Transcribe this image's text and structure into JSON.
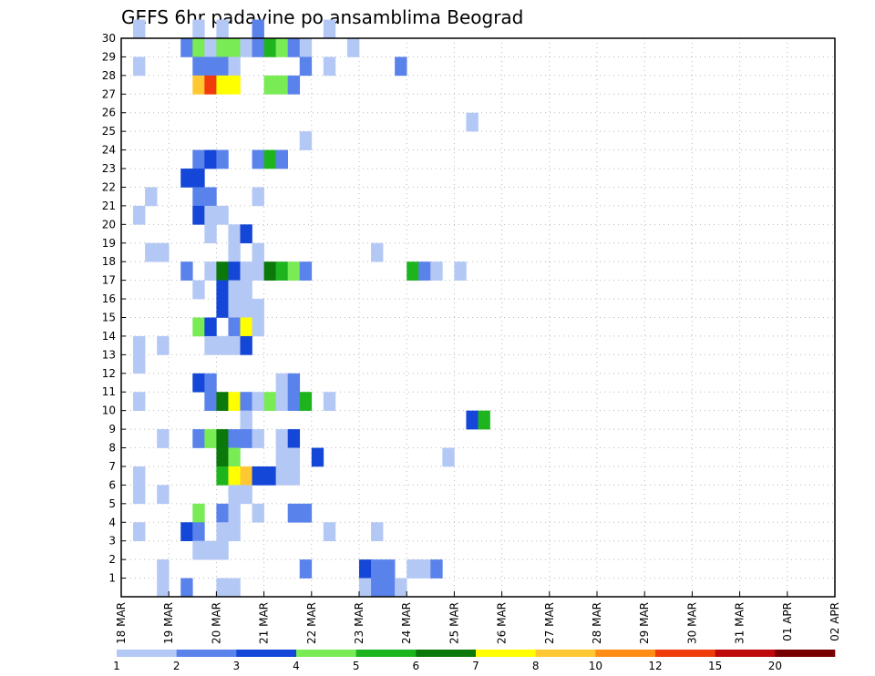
{
  "chart_data": {
    "type": "heatmap",
    "title": "GEFS 6hr padavine po ansamblima Beograd",
    "xlabel": "",
    "ylabel": "",
    "x_ticks": [
      "18 MAR",
      "19 MAR",
      "20 MAR",
      "21 MAR",
      "22 MAR",
      "23 MAR",
      "24 MAR",
      "25 MAR",
      "26 MAR",
      "27 MAR",
      "28 MAR",
      "29 MAR",
      "30 MAR",
      "31 MAR",
      "01 APR",
      "02 APR"
    ],
    "x_range": [
      "18 MAR 00Z",
      "02 APR 00Z"
    ],
    "x_step": "6hr",
    "y_ticks": [
      "1",
      "2",
      "3",
      "4",
      "5",
      "6",
      "7",
      "8",
      "9",
      "10",
      "11",
      "12",
      "13",
      "14",
      "15",
      "16",
      "17",
      "18",
      "19",
      "20",
      "21",
      "22",
      "23",
      "24",
      "25",
      "26",
      "27",
      "28",
      "29",
      "30"
    ],
    "y_range": [
      0,
      30
    ],
    "grid": true,
    "colorbar": {
      "labels": [
        "1",
        "2",
        "3",
        "4",
        "5",
        "6",
        "7",
        "8",
        "10",
        "12",
        "15",
        "20"
      ],
      "colors": [
        "#b4c8f5",
        "#5a82eb",
        "#1446d7",
        "#78eb55",
        "#1eb41e",
        "#0a780a",
        "#ffff00",
        "#ffc832",
        "#ff8c14",
        "#f03c0a",
        "#be0a0a",
        "#780000"
      ]
    },
    "cells": [
      [
        30,
        1,
        0
      ],
      [
        30,
        6,
        0
      ],
      [
        30,
        8,
        0
      ],
      [
        30,
        11,
        1
      ],
      [
        30,
        17,
        0
      ],
      [
        29,
        5,
        1
      ],
      [
        29,
        6,
        3
      ],
      [
        29,
        7,
        0
      ],
      [
        29,
        8,
        3
      ],
      [
        29,
        9,
        3
      ],
      [
        29,
        10,
        0
      ],
      [
        29,
        11,
        1
      ],
      [
        29,
        12,
        4
      ],
      [
        29,
        13,
        3
      ],
      [
        29,
        14,
        1
      ],
      [
        29,
        15,
        0
      ],
      [
        29,
        19,
        0
      ],
      [
        28,
        1,
        0
      ],
      [
        28,
        6,
        1
      ],
      [
        28,
        7,
        1
      ],
      [
        28,
        8,
        1
      ],
      [
        28,
        9,
        0
      ],
      [
        28,
        15,
        1
      ],
      [
        28,
        17,
        0
      ],
      [
        28,
        23,
        1
      ],
      [
        27,
        6,
        7
      ],
      [
        27,
        7,
        9
      ],
      [
        27,
        8,
        6
      ],
      [
        27,
        9,
        6
      ],
      [
        27,
        12,
        3
      ],
      [
        27,
        13,
        3
      ],
      [
        27,
        14,
        1
      ],
      [
        25,
        29,
        0
      ],
      [
        24,
        15,
        0
      ],
      [
        23,
        6,
        1
      ],
      [
        23,
        7,
        2
      ],
      [
        23,
        8,
        1
      ],
      [
        23,
        11,
        1
      ],
      [
        23,
        12,
        4
      ],
      [
        23,
        13,
        1
      ],
      [
        22,
        5,
        2
      ],
      [
        22,
        6,
        2
      ],
      [
        21,
        2,
        0
      ],
      [
        21,
        6,
        1
      ],
      [
        21,
        7,
        1
      ],
      [
        21,
        11,
        0
      ],
      [
        20,
        1,
        0
      ],
      [
        20,
        6,
        2
      ],
      [
        20,
        7,
        0
      ],
      [
        20,
        8,
        0
      ],
      [
        19,
        7,
        0
      ],
      [
        19,
        9,
        0
      ],
      [
        19,
        10,
        2
      ],
      [
        18,
        2,
        0
      ],
      [
        18,
        3,
        0
      ],
      [
        18,
        9,
        0
      ],
      [
        18,
        11,
        0
      ],
      [
        18,
        21,
        0
      ],
      [
        17,
        5,
        1
      ],
      [
        17,
        7,
        0
      ],
      [
        17,
        8,
        5
      ],
      [
        17,
        9,
        2
      ],
      [
        17,
        10,
        0
      ],
      [
        17,
        11,
        0
      ],
      [
        17,
        12,
        5
      ],
      [
        17,
        13,
        4
      ],
      [
        17,
        14,
        3
      ],
      [
        17,
        15,
        1
      ],
      [
        17,
        24,
        4
      ],
      [
        17,
        25,
        1
      ],
      [
        17,
        26,
        0
      ],
      [
        17,
        28,
        0
      ],
      [
        16,
        6,
        0
      ],
      [
        16,
        8,
        2
      ],
      [
        16,
        9,
        0
      ],
      [
        16,
        10,
        0
      ],
      [
        15,
        8,
        2
      ],
      [
        15,
        9,
        0
      ],
      [
        15,
        10,
        0
      ],
      [
        15,
        11,
        0
      ],
      [
        14,
        6,
        3
      ],
      [
        14,
        7,
        2
      ],
      [
        14,
        9,
        1
      ],
      [
        14,
        10,
        6
      ],
      [
        14,
        11,
        0
      ],
      [
        13,
        1,
        0
      ],
      [
        13,
        3,
        0
      ],
      [
        13,
        7,
        0
      ],
      [
        13,
        8,
        0
      ],
      [
        13,
        9,
        0
      ],
      [
        13,
        10,
        2
      ],
      [
        12,
        1,
        0
      ],
      [
        11,
        6,
        2
      ],
      [
        11,
        7,
        1
      ],
      [
        11,
        13,
        0
      ],
      [
        11,
        14,
        1
      ],
      [
        10,
        1,
        0
      ],
      [
        10,
        7,
        1
      ],
      [
        10,
        8,
        5
      ],
      [
        10,
        9,
        6
      ],
      [
        10,
        10,
        1
      ],
      [
        10,
        11,
        0
      ],
      [
        10,
        12,
        3
      ],
      [
        10,
        13,
        0
      ],
      [
        10,
        14,
        1
      ],
      [
        10,
        15,
        4
      ],
      [
        10,
        17,
        0
      ],
      [
        9,
        10,
        0
      ],
      [
        9,
        29,
        2
      ],
      [
        9,
        30,
        4
      ],
      [
        8,
        3,
        0
      ],
      [
        8,
        6,
        1
      ],
      [
        8,
        7,
        3
      ],
      [
        8,
        8,
        5
      ],
      [
        8,
        9,
        1
      ],
      [
        8,
        10,
        1
      ],
      [
        8,
        11,
        0
      ],
      [
        8,
        13,
        0
      ],
      [
        8,
        14,
        2
      ],
      [
        7,
        8,
        5
      ],
      [
        7,
        9,
        3
      ],
      [
        7,
        13,
        0
      ],
      [
        7,
        14,
        0
      ],
      [
        7,
        16,
        2
      ],
      [
        7,
        27,
        0
      ],
      [
        6,
        1,
        0
      ],
      [
        6,
        8,
        4
      ],
      [
        6,
        9,
        6
      ],
      [
        6,
        10,
        7
      ],
      [
        6,
        11,
        2
      ],
      [
        6,
        12,
        2
      ],
      [
        6,
        13,
        0
      ],
      [
        6,
        14,
        0
      ],
      [
        5,
        1,
        0
      ],
      [
        5,
        3,
        0
      ],
      [
        5,
        9,
        0
      ],
      [
        5,
        10,
        0
      ],
      [
        4,
        6,
        3
      ],
      [
        4,
        8,
        1
      ],
      [
        4,
        9,
        0
      ],
      [
        4,
        11,
        0
      ],
      [
        4,
        14,
        1
      ],
      [
        4,
        15,
        1
      ],
      [
        3,
        1,
        0
      ],
      [
        3,
        5,
        2
      ],
      [
        3,
        6,
        1
      ],
      [
        3,
        8,
        0
      ],
      [
        3,
        9,
        0
      ],
      [
        3,
        17,
        0
      ],
      [
        3,
        21,
        0
      ],
      [
        2,
        6,
        0
      ],
      [
        2,
        7,
        0
      ],
      [
        2,
        8,
        0
      ],
      [
        1,
        3,
        0
      ],
      [
        1,
        15,
        1
      ],
      [
        1,
        20,
        2
      ],
      [
        1,
        21,
        1
      ],
      [
        1,
        22,
        1
      ],
      [
        1,
        24,
        0
      ],
      [
        1,
        25,
        0
      ],
      [
        1,
        26,
        1
      ],
      [
        0,
        3,
        0
      ],
      [
        0,
        5,
        1
      ],
      [
        0,
        8,
        0
      ],
      [
        0,
        9,
        0
      ],
      [
        0,
        20,
        0
      ],
      [
        0,
        21,
        1
      ],
      [
        0,
        22,
        1
      ],
      [
        0,
        23,
        0
      ]
    ]
  }
}
